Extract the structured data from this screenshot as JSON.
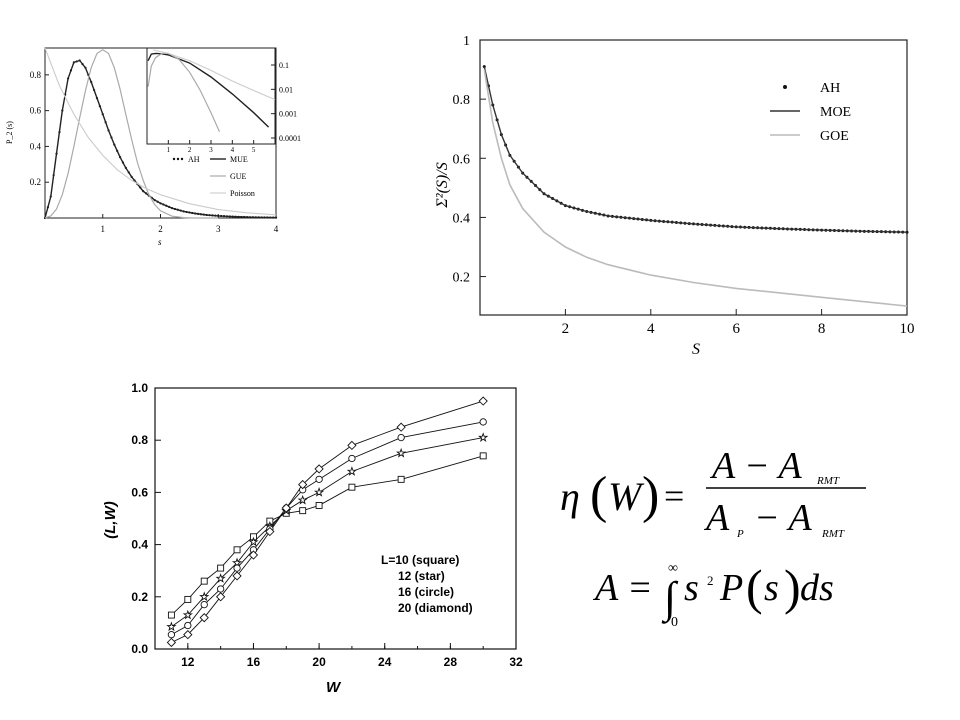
{
  "chart_data": [
    {
      "id": "spacing",
      "type": "line",
      "xlabel": "s",
      "ylabel": "P_2 (s)",
      "xlim": [
        0,
        4
      ],
      "ylim": [
        0,
        0.95
      ],
      "xticks": [
        {
          "v": 1,
          "t": "1"
        },
        {
          "v": 2,
          "t": "2"
        },
        {
          "v": 3,
          "t": "3"
        },
        {
          "v": 4,
          "t": "4"
        }
      ],
      "yticks": [
        {
          "v": 0.2,
          "t": "0.2"
        },
        {
          "v": 0.4,
          "t": "0.4"
        },
        {
          "v": 0.6,
          "t": "0.6"
        },
        {
          "v": 0.8,
          "t": "0.8"
        }
      ],
      "legend": {
        "entries": [
          {
            "label": "AH",
            "style": "dot"
          },
          {
            "label": "MUE",
            "style": "dark"
          },
          {
            "label": "GUE",
            "style": "gray"
          },
          {
            "label": "Poisson",
            "style": "light"
          }
        ],
        "placement": "bottom-right"
      },
      "series": [
        {
          "name": "AH",
          "style": "dot",
          "x": [
            0,
            0.1,
            0.2,
            0.3,
            0.4,
            0.5,
            0.6,
            0.7,
            0.8,
            0.9,
            1.0,
            1.1,
            1.2,
            1.3,
            1.4,
            1.5,
            1.6,
            1.7,
            1.8,
            1.9,
            2.0,
            2.2,
            2.4,
            2.6,
            2.8,
            3.0,
            3.3,
            3.6,
            4.0
          ],
          "y": [
            0,
            0.12,
            0.36,
            0.6,
            0.78,
            0.87,
            0.88,
            0.84,
            0.76,
            0.67,
            0.58,
            0.49,
            0.41,
            0.34,
            0.28,
            0.23,
            0.19,
            0.15,
            0.125,
            0.1,
            0.082,
            0.055,
            0.037,
            0.025,
            0.017,
            0.012,
            0.007,
            0.004,
            0.002
          ]
        },
        {
          "name": "MUE",
          "style": "dark",
          "x": [
            0,
            0.1,
            0.2,
            0.3,
            0.4,
            0.5,
            0.6,
            0.7,
            0.8,
            0.9,
            1.0,
            1.1,
            1.2,
            1.3,
            1.4,
            1.5,
            1.6,
            1.7,
            1.8,
            1.9,
            2.0,
            2.2,
            2.4,
            2.6,
            2.8,
            3.0,
            3.3,
            3.6,
            4.0
          ],
          "y": [
            0,
            0.12,
            0.36,
            0.6,
            0.78,
            0.87,
            0.88,
            0.84,
            0.76,
            0.67,
            0.58,
            0.49,
            0.41,
            0.34,
            0.28,
            0.23,
            0.19,
            0.15,
            0.125,
            0.1,
            0.082,
            0.055,
            0.037,
            0.025,
            0.017,
            0.012,
            0.007,
            0.004,
            0.002
          ]
        },
        {
          "name": "GUE",
          "style": "gray",
          "x": [
            0,
            0.1,
            0.2,
            0.3,
            0.4,
            0.5,
            0.6,
            0.7,
            0.8,
            0.9,
            1.0,
            1.1,
            1.2,
            1.3,
            1.4,
            1.5,
            1.6,
            1.7,
            1.8,
            1.9,
            2.0,
            2.2,
            2.4,
            2.6,
            2.8,
            3.0
          ],
          "y": [
            0,
            0.011,
            0.05,
            0.13,
            0.25,
            0.4,
            0.56,
            0.71,
            0.84,
            0.92,
            0.94,
            0.92,
            0.84,
            0.72,
            0.58,
            0.44,
            0.31,
            0.21,
            0.13,
            0.075,
            0.04,
            0.01,
            0.002,
            0,
            0,
            0
          ]
        },
        {
          "name": "Poisson",
          "style": "light",
          "x": [
            0,
            0.25,
            0.5,
            0.75,
            1.0,
            1.25,
            1.5,
            1.75,
            2.0,
            2.5,
            3.0,
            3.5,
            4.0
          ],
          "y": [
            0.95,
            0.74,
            0.58,
            0.45,
            0.35,
            0.27,
            0.21,
            0.165,
            0.13,
            0.08,
            0.047,
            0.029,
            0.018
          ]
        }
      ],
      "inset": {
        "xlim": [
          0,
          6
        ],
        "yticks": [
          {
            "v": 0.1,
            "t": "0.1"
          },
          {
            "v": 0.01,
            "t": "0.01"
          },
          {
            "v": 0.001,
            "t": "0.001"
          },
          {
            "v": 0.0001,
            "t": "0.0001"
          }
        ],
        "xticks": [
          {
            "v": 1,
            "t": "1"
          },
          {
            "v": 2,
            "t": "2"
          },
          {
            "v": 3,
            "t": "3"
          },
          {
            "v": 4,
            "t": "4"
          },
          {
            "v": 5,
            "t": "5"
          }
        ],
        "scale": "log",
        "series": [
          {
            "name": "MUE",
            "style": "dark",
            "x": [
              0.05,
              0.2,
              0.4,
              0.7,
              1,
              2,
              3,
              4,
              5,
              5.7
            ],
            "y": [
              0.15,
              0.28,
              0.3,
              0.29,
              0.26,
              0.12,
              0.032,
              0.0065,
              0.0011,
              0.00028
            ]
          },
          {
            "name": "GUE",
            "style": "gray",
            "x": [
              0.05,
              0.2,
              0.4,
              0.7,
              1,
              1.5,
              2,
              2.5,
              3,
              3.4
            ],
            "y": [
              0.013,
              0.09,
              0.2,
              0.3,
              0.3,
              0.17,
              0.05,
              0.009,
              0.0011,
              0.00018
            ]
          },
          {
            "name": "Poisson",
            "style": "light",
            "x": [
              0.3,
              1,
              2,
              3,
              4,
              5,
              6
            ],
            "y": [
              0.5,
              0.3,
              0.15,
              0.06,
              0.022,
              0.009,
              0.0038
            ]
          }
        ]
      }
    },
    {
      "id": "number-variance",
      "type": "line",
      "xlabel": "S",
      "ylabel": "Σ²(S)/S",
      "xlim": [
        0,
        10
      ],
      "ylim": [
        0.07,
        1
      ],
      "xticks": [
        {
          "v": 2,
          "t": "2"
        },
        {
          "v": 4,
          "t": "4"
        },
        {
          "v": 6,
          "t": "6"
        },
        {
          "v": 8,
          "t": "8"
        },
        {
          "v": 10,
          "t": "10"
        }
      ],
      "yticks": [
        {
          "v": 0.2,
          "t": "0.2"
        },
        {
          "v": 0.4,
          "t": "0.4"
        },
        {
          "v": 0.6,
          "t": "0.6"
        },
        {
          "v": 0.8,
          "t": "0.8"
        },
        {
          "v": 1.0,
          "t": "1"
        }
      ],
      "legend": {
        "entries": [
          {
            "label": "AH",
            "style": "dot"
          },
          {
            "label": "MOE",
            "style": "dark"
          },
          {
            "label": "GOE",
            "style": "light"
          }
        ],
        "placement": "top-right"
      },
      "series": [
        {
          "name": "AH",
          "style": "dot",
          "step": 0.1,
          "x": [
            0.1,
            0.3,
            0.5,
            0.7,
            1,
            1.5,
            2,
            2.5,
            3,
            4,
            5,
            6,
            7,
            8,
            9,
            10
          ],
          "y": [
            0.91,
            0.78,
            0.68,
            0.61,
            0.55,
            0.48,
            0.44,
            0.42,
            0.405,
            0.39,
            0.378,
            0.368,
            0.362,
            0.357,
            0.353,
            0.35
          ]
        },
        {
          "name": "MOE",
          "style": "dark",
          "x": [
            0.1,
            0.3,
            0.5,
            0.7,
            1,
            1.5,
            2,
            2.5,
            3,
            4,
            5,
            6,
            7,
            8,
            9,
            10
          ],
          "y": [
            0.91,
            0.78,
            0.68,
            0.61,
            0.55,
            0.48,
            0.44,
            0.42,
            0.405,
            0.39,
            0.378,
            0.368,
            0.362,
            0.357,
            0.353,
            0.35
          ]
        },
        {
          "name": "GOE",
          "style": "light",
          "x": [
            0.1,
            0.3,
            0.5,
            0.7,
            1,
            1.5,
            2,
            2.5,
            3,
            4,
            5,
            6,
            7,
            8,
            9,
            10
          ],
          "y": [
            0.9,
            0.72,
            0.6,
            0.51,
            0.43,
            0.35,
            0.3,
            0.265,
            0.24,
            0.205,
            0.18,
            0.16,
            0.145,
            0.13,
            0.115,
            0.1
          ]
        }
      ]
    },
    {
      "id": "eta",
      "type": "line",
      "xlabel": "W",
      "ylabel": "(L,W)",
      "xlim": [
        10,
        32
      ],
      "ylim": [
        0,
        1.0
      ],
      "xticks": [
        {
          "v": 12,
          "t": "12"
        },
        {
          "v": 16,
          "t": "16"
        },
        {
          "v": 20,
          "t": "20"
        },
        {
          "v": 24,
          "t": "24"
        },
        {
          "v": 28,
          "t": "28"
        },
        {
          "v": 32,
          "t": "32"
        }
      ],
      "yticks": [
        {
          "v": 0,
          "t": "0.0"
        },
        {
          "v": 0.2,
          "t": "0.2"
        },
        {
          "v": 0.4,
          "t": "0.4"
        },
        {
          "v": 0.6,
          "t": "0.6"
        },
        {
          "v": 0.8,
          "t": "0.8"
        },
        {
          "v": 1.0,
          "t": "1.0"
        }
      ],
      "legend": {
        "entries": [
          {
            "label": "L=10 (square)"
          },
          {
            "label": "12 (star)"
          },
          {
            "label": "16 (circle)"
          },
          {
            "label": "20 (diamond)"
          }
        ],
        "placement": "center-right"
      },
      "x": [
        11,
        12,
        13,
        14,
        15,
        16,
        17,
        18,
        19,
        20,
        22,
        25,
        30
      ],
      "series": [
        {
          "name": "L=10",
          "marker": "square",
          "y": [
            0.13,
            0.19,
            0.26,
            0.31,
            0.38,
            0.43,
            0.49,
            0.52,
            0.53,
            0.55,
            0.62,
            0.65,
            0.74
          ]
        },
        {
          "name": "12",
          "marker": "star",
          "y": [
            0.085,
            0.13,
            0.2,
            0.27,
            0.33,
            0.41,
            0.47,
            0.53,
            0.57,
            0.6,
            0.68,
            0.75,
            0.81
          ]
        },
        {
          "name": "16",
          "marker": "circle",
          "y": [
            0.055,
            0.09,
            0.17,
            0.23,
            0.31,
            0.38,
            0.46,
            0.54,
            0.61,
            0.65,
            0.73,
            0.81,
            0.87
          ]
        },
        {
          "name": "20",
          "marker": "diamond",
          "y": [
            0.025,
            0.055,
            0.12,
            0.2,
            0.28,
            0.36,
            0.45,
            0.54,
            0.63,
            0.69,
            0.78,
            0.85,
            0.95
          ]
        }
      ]
    }
  ],
  "formula": {
    "eta": "η",
    "W": "W",
    "equals": "=",
    "numerator": "A − A",
    "sub_rmt": "RMT",
    "denominator_A": "A",
    "sub_p": "P",
    "minus_A": "− A",
    "A_def_lhs": "A =",
    "integral": "∫",
    "upper": "∞",
    "lower": "0",
    "s": "s",
    "sq": "2",
    "P_of_s": "P",
    "s_inner": "s",
    "ds": "ds"
  }
}
